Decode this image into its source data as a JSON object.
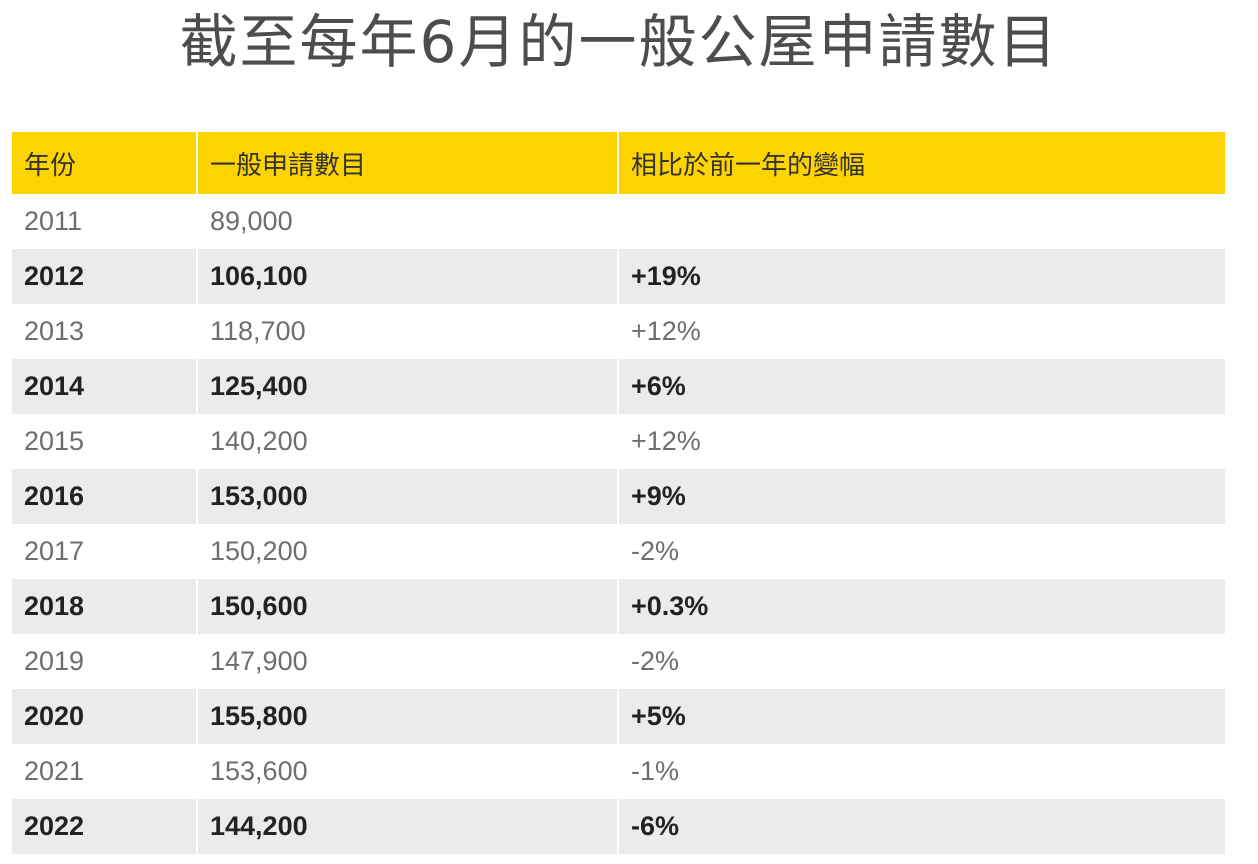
{
  "title": "截至每年6月的一般公屋申請數目",
  "colors": {
    "header_bg": "#fed400",
    "alt_row_bg": "#ebebeb",
    "title_text": "#4d4d4d"
  },
  "chart_data": {
    "type": "table",
    "title": "截至每年6月的一般公屋申請數目",
    "columns": [
      "年份",
      "一般申請數目",
      "相比於前一年的變幅"
    ],
    "rows": [
      [
        "2011",
        "89,000",
        ""
      ],
      [
        "2012",
        "106,100",
        "+19%"
      ],
      [
        "2013",
        "118,700",
        "+12%"
      ],
      [
        "2014",
        "125,400",
        "+6%"
      ],
      [
        "2015",
        "140,200",
        "+12%"
      ],
      [
        "2016",
        "153,000",
        "+9%"
      ],
      [
        "2017",
        "150,200",
        "-2%"
      ],
      [
        "2018",
        "150,600",
        "+0.3%"
      ],
      [
        "2019",
        "147,900",
        "-2%"
      ],
      [
        "2020",
        "155,800",
        "+5%"
      ],
      [
        "2021",
        "153,600",
        "-1%"
      ],
      [
        "2022",
        "144,200",
        "-6%"
      ]
    ]
  }
}
